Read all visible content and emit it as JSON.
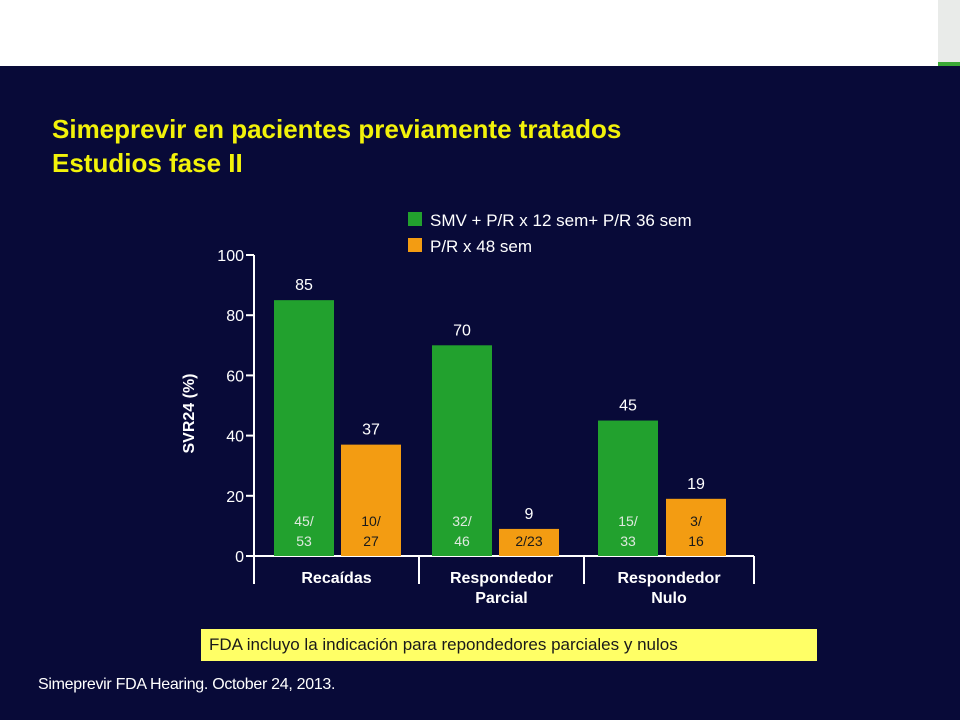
{
  "colors": {
    "background": "#080a38",
    "title": "#f2f20a",
    "smv": "#22a12e",
    "pr": "#f39c12",
    "note_bg": "#ffff66",
    "accent": "#3aa935",
    "text": "#ffffff"
  },
  "slide": {
    "title_line1": "Simeprevir en pacientes previamente tratados",
    "title_line2": "Estudios fase II",
    "note": "FDA incluyo la indicación para repondedores parciales y nulos",
    "source": "Simeprevir FDA Hearing. October 24, 2013."
  },
  "chart_data": {
    "type": "bar",
    "ylabel": "SVR24 (%)",
    "ylim": [
      0,
      100
    ],
    "yticks": [
      0,
      20,
      40,
      60,
      80,
      100
    ],
    "legend_position": "top-right",
    "categories": [
      [
        "Recaídas"
      ],
      [
        "Respondedor",
        "Parcial"
      ],
      [
        "Respondedor",
        "Nulo"
      ]
    ],
    "series": [
      {
        "name": "SMV + P/R x 12 sem+ P/R 36 sem",
        "values": [
          85,
          70,
          45
        ],
        "value_labels": [
          "85",
          "70",
          "45"
        ],
        "count_labels": [
          [
            "45/",
            "53"
          ],
          [
            "32/",
            "46"
          ],
          [
            "15/",
            "33"
          ]
        ]
      },
      {
        "name": "P/R x 48 sem",
        "values": [
          37,
          9,
          19
        ],
        "value_labels": [
          "37",
          "9",
          "19"
        ],
        "count_labels": [
          [
            "10/",
            "27"
          ],
          [
            "2/23"
          ],
          [
            "3/",
            "16"
          ]
        ]
      }
    ]
  }
}
